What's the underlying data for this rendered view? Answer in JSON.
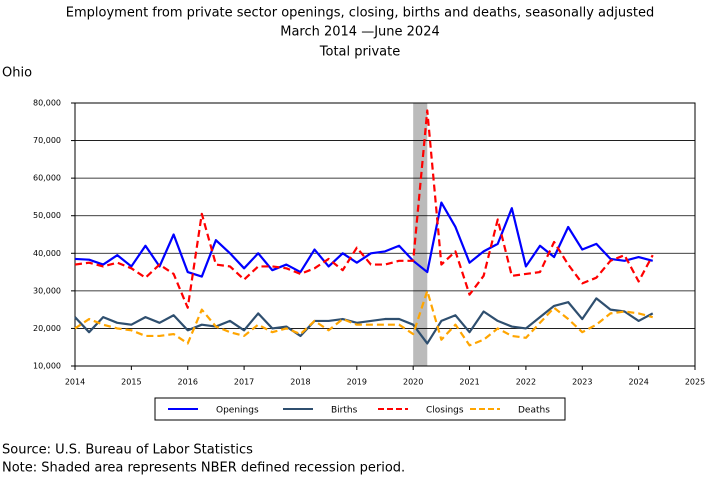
{
  "chart_data": {
    "type": "line",
    "title": "Employment from private sector openings, closing, births and deaths, seasonally adjusted",
    "subtitle": "March 2014 —June 2024",
    "series_label": "Total private",
    "region": "Ohio",
    "source": "Source: U.S. Bureau of Labor Statistics",
    "note": "Note: Shaded area represents NBER defined recession period.",
    "recession": [
      2020,
      2020.25
    ],
    "x": [
      2014,
      2014.25,
      2014.5,
      2014.75,
      2015,
      2015.25,
      2015.5,
      2015.75,
      2016,
      2016.25,
      2016.5,
      2016.75,
      2017,
      2017.25,
      2017.5,
      2017.75,
      2018,
      2018.25,
      2018.5,
      2018.75,
      2019,
      2019.25,
      2019.5,
      2019.75,
      2020,
      2020.25,
      2020.5,
      2020.75,
      2021,
      2021.25,
      2021.5,
      2021.75,
      2022,
      2022.25,
      2022.5,
      2022.75,
      2023,
      2023.25,
      2023.5,
      2023.75,
      2024,
      2024.25
    ],
    "series": [
      {
        "name": "Openings",
        "color": "#0000ff",
        "dashed": false,
        "values": [
          38500,
          38300,
          37000,
          39500,
          36500,
          42000,
          36500,
          45000,
          35000,
          33800,
          43500,
          40000,
          36000,
          40000,
          35500,
          37000,
          35000,
          41000,
          36500,
          40000,
          37500,
          40000,
          40500,
          42000,
          38000,
          35000,
          53500,
          47000,
          37500,
          40500,
          42500,
          52000,
          36500,
          42000,
          39000,
          47000,
          41000,
          42500,
          38500,
          38000,
          39000,
          38000
        ]
      },
      {
        "name": "Births",
        "color": "#2f4f6f",
        "dashed": false,
        "values": [
          23000,
          19000,
          23000,
          21500,
          21000,
          23000,
          21500,
          23500,
          19500,
          21000,
          20500,
          22000,
          19500,
          24000,
          20000,
          20500,
          18000,
          22000,
          22000,
          22500,
          21500,
          22000,
          22500,
          22500,
          21000,
          16000,
          22000,
          23500,
          19000,
          24500,
          22000,
          20500,
          20000,
          23000,
          26000,
          27000,
          22500,
          28000,
          25000,
          24500,
          22000,
          24000
        ]
      },
      {
        "name": "Closings",
        "color": "#ff0000",
        "dashed": true,
        "values": [
          37000,
          37500,
          36500,
          37500,
          36000,
          33500,
          37000,
          34500,
          25500,
          50500,
          37000,
          36500,
          33000,
          36500,
          36500,
          36000,
          34500,
          36000,
          38500,
          35500,
          41500,
          37000,
          37000,
          38000,
          38000,
          78000,
          37000,
          40500,
          29000,
          34000,
          49000,
          34000,
          34500,
          35000,
          43000,
          37000,
          32000,
          33500,
          38000,
          39500,
          32500,
          39500
        ]
      },
      {
        "name": "Deaths",
        "color": "#ffa500",
        "dashed": true,
        "values": [
          20000,
          22500,
          21000,
          20000,
          19500,
          18000,
          18000,
          18500,
          16000,
          25000,
          20500,
          19000,
          18000,
          21000,
          19000,
          20000,
          18500,
          22000,
          19500,
          22500,
          21000,
          21000,
          21000,
          21000,
          18500,
          30000,
          17000,
          21000,
          15500,
          17000,
          20000,
          18000,
          17500,
          21500,
          25500,
          22500,
          19000,
          21000,
          24000,
          24500,
          24000,
          23000
        ]
      }
    ],
    "xlim": [
      2014,
      2025
    ],
    "xticks": [
      2014,
      2015,
      2016,
      2017,
      2018,
      2019,
      2020,
      2021,
      2022,
      2023,
      2024,
      2025
    ],
    "ylim": [
      10000,
      80000
    ],
    "yticks": [
      {
        "value": 10000,
        "label": "10,000"
      },
      {
        "value": 20000,
        "label": "20,000"
      },
      {
        "value": 30000,
        "label": "30,000"
      },
      {
        "value": 40000,
        "label": "40,000"
      },
      {
        "value": 50000,
        "label": "50,000"
      },
      {
        "value": 60000,
        "label": "60,000"
      },
      {
        "value": 70000,
        "label": "70,000"
      },
      {
        "value": 80000,
        "label": "80,000"
      }
    ],
    "grid": true
  }
}
